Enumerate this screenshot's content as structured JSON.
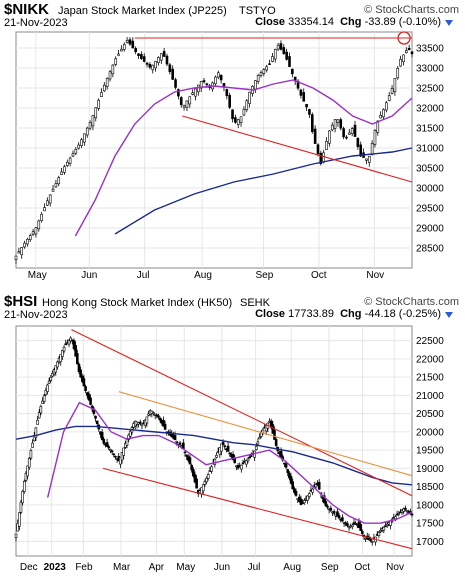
{
  "chart_data": [
    {
      "type": "candlestick",
      "symbol": "$NIKK",
      "title": "Japan Stock Market Index (JP225)",
      "exchange": "TSTYO",
      "brand": "© StockCharts.com",
      "date": "21-Nov-2023",
      "close_label": "Close",
      "close_value": "33354.14",
      "chg_label": "Chg",
      "chg_value": "-33.89 (-0.10%)",
      "x_ticks": [
        "May",
        "Jun",
        "Jul",
        "Aug",
        "Sep",
        "Oct",
        "Nov"
      ],
      "y_ticks": [
        28500,
        29000,
        29500,
        30000,
        30500,
        31000,
        31500,
        32000,
        32500,
        33000,
        33500
      ],
      "ylim": [
        28000,
        33900
      ],
      "price_path": [
        [
          0,
          28300
        ],
        [
          0.02,
          28600
        ],
        [
          0.05,
          29000
        ],
        [
          0.08,
          29700
        ],
        [
          0.12,
          30500
        ],
        [
          0.16,
          31100
        ],
        [
          0.19,
          31700
        ],
        [
          0.22,
          32500
        ],
        [
          0.25,
          33200
        ],
        [
          0.28,
          33700
        ],
        [
          0.31,
          33300
        ],
        [
          0.34,
          33000
        ],
        [
          0.37,
          33400
        ],
        [
          0.4,
          32600
        ],
        [
          0.42,
          32000
        ],
        [
          0.44,
          32300
        ],
        [
          0.47,
          32700
        ],
        [
          0.49,
          32500
        ],
        [
          0.51,
          32900
        ],
        [
          0.53,
          32400
        ],
        [
          0.55,
          31600
        ],
        [
          0.57,
          31800
        ],
        [
          0.59,
          32400
        ],
        [
          0.61,
          32800
        ],
        [
          0.64,
          33100
        ],
        [
          0.66,
          33600
        ],
        [
          0.68,
          33300
        ],
        [
          0.7,
          32800
        ],
        [
          0.72,
          32300
        ],
        [
          0.74,
          31900
        ],
        [
          0.75,
          31300
        ],
        [
          0.77,
          30600
        ],
        [
          0.79,
          31400
        ],
        [
          0.81,
          31800
        ],
        [
          0.83,
          31200
        ],
        [
          0.85,
          31500
        ],
        [
          0.87,
          30800
        ],
        [
          0.89,
          30700
        ],
        [
          0.91,
          31600
        ],
        [
          0.93,
          32000
        ],
        [
          0.95,
          32500
        ],
        [
          0.97,
          33200
        ],
        [
          0.99,
          33500
        ],
        [
          1,
          33354
        ]
      ],
      "ma50": [
        [
          0.15,
          28800
        ],
        [
          0.2,
          29700
        ],
        [
          0.25,
          30800
        ],
        [
          0.3,
          31600
        ],
        [
          0.35,
          32100
        ],
        [
          0.4,
          32400
        ],
        [
          0.45,
          32500
        ],
        [
          0.5,
          32550
        ],
        [
          0.55,
          32500
        ],
        [
          0.6,
          32450
        ],
        [
          0.65,
          32600
        ],
        [
          0.7,
          32700
        ],
        [
          0.75,
          32500
        ],
        [
          0.8,
          32200
        ],
        [
          0.85,
          31800
        ],
        [
          0.9,
          31600
        ],
        [
          0.95,
          31800
        ],
        [
          1,
          32250
        ]
      ],
      "ma200": [
        [
          0.25,
          28850
        ],
        [
          0.35,
          29450
        ],
        [
          0.45,
          29850
        ],
        [
          0.55,
          30150
        ],
        [
          0.65,
          30350
        ],
        [
          0.75,
          30600
        ],
        [
          0.85,
          30800
        ],
        [
          0.95,
          30900
        ],
        [
          1,
          31000
        ]
      ],
      "lines": [
        {
          "color": "#e02020",
          "pts": [
            [
              0.3,
              33750
            ],
            [
              1,
              33750
            ]
          ]
        },
        {
          "color": "#e02020",
          "pts": [
            [
              0.42,
              31800
            ],
            [
              1,
              30150
            ]
          ]
        }
      ],
      "highlight": [
        0.98,
        33750
      ],
      "colors": {
        "ma50": "#9b30c8",
        "ma200": "#1a2a8a",
        "up": "#ffffff",
        "down": "#000000"
      }
    },
    {
      "type": "candlestick",
      "symbol": "$HSI",
      "title": "Hong Kong Stock Market Index (HK50)",
      "exchange": "SEHK",
      "brand": "© StockCharts.com",
      "date": "21-Nov-2023",
      "close_label": "Close",
      "close_value": "17733.89",
      "chg_label": "Chg",
      "chg_value": "-44.18 (-0.25%)",
      "x_ticks": [
        "Dec",
        "2023",
        "Feb",
        "Mar",
        "Apr",
        "May",
        "Jun",
        "Jul",
        "Aug",
        "Sep",
        "Oct",
        "Nov"
      ],
      "y_ticks": [
        17000,
        17500,
        18000,
        18500,
        19000,
        19500,
        20000,
        20500,
        21000,
        21500,
        22000,
        22500
      ],
      "ylim": [
        16600,
        22900
      ],
      "price_path": [
        [
          0,
          17200
        ],
        [
          0.02,
          18600
        ],
        [
          0.04,
          19600
        ],
        [
          0.06,
          20600
        ],
        [
          0.08,
          21300
        ],
        [
          0.1,
          21800
        ],
        [
          0.12,
          22300
        ],
        [
          0.14,
          22600
        ],
        [
          0.16,
          21600
        ],
        [
          0.18,
          21000
        ],
        [
          0.2,
          20400
        ],
        [
          0.22,
          19700
        ],
        [
          0.24,
          19500
        ],
        [
          0.26,
          19200
        ],
        [
          0.28,
          19800
        ],
        [
          0.3,
          20300
        ],
        [
          0.32,
          20200
        ],
        [
          0.34,
          20600
        ],
        [
          0.36,
          20400
        ],
        [
          0.38,
          20000
        ],
        [
          0.4,
          19800
        ],
        [
          0.42,
          19600
        ],
        [
          0.44,
          19100
        ],
        [
          0.46,
          18300
        ],
        [
          0.48,
          18700
        ],
        [
          0.5,
          19200
        ],
        [
          0.52,
          19700
        ],
        [
          0.54,
          19400
        ],
        [
          0.56,
          19000
        ],
        [
          0.58,
          19200
        ],
        [
          0.6,
          19400
        ],
        [
          0.62,
          20000
        ],
        [
          0.64,
          20300
        ],
        [
          0.66,
          19500
        ],
        [
          0.68,
          19100
        ],
        [
          0.7,
          18400
        ],
        [
          0.72,
          18000
        ],
        [
          0.74,
          18300
        ],
        [
          0.76,
          18600
        ],
        [
          0.78,
          18000
        ],
        [
          0.8,
          17800
        ],
        [
          0.82,
          17600
        ],
        [
          0.84,
          17400
        ],
        [
          0.86,
          17500
        ],
        [
          0.88,
          17100
        ],
        [
          0.9,
          17000
        ],
        [
          0.92,
          17300
        ],
        [
          0.94,
          17500
        ],
        [
          0.96,
          17700
        ],
        [
          0.98,
          17900
        ],
        [
          1,
          17734
        ]
      ],
      "ma50": [
        [
          0.08,
          18200
        ],
        [
          0.12,
          20000
        ],
        [
          0.16,
          20800
        ],
        [
          0.2,
          20600
        ],
        [
          0.24,
          20000
        ],
        [
          0.28,
          19800
        ],
        [
          0.32,
          19900
        ],
        [
          0.36,
          19900
        ],
        [
          0.4,
          19700
        ],
        [
          0.44,
          19400
        ],
        [
          0.48,
          19100
        ],
        [
          0.52,
          19200
        ],
        [
          0.56,
          19300
        ],
        [
          0.6,
          19400
        ],
        [
          0.64,
          19500
        ],
        [
          0.68,
          19200
        ],
        [
          0.72,
          18800
        ],
        [
          0.76,
          18400
        ],
        [
          0.8,
          18000
        ],
        [
          0.84,
          17700
        ],
        [
          0.88,
          17500
        ],
        [
          0.92,
          17500
        ],
        [
          0.96,
          17600
        ],
        [
          1,
          17800
        ]
      ],
      "ma200": [
        [
          0,
          19800
        ],
        [
          0.05,
          19900
        ],
        [
          0.1,
          20050
        ],
        [
          0.15,
          20150
        ],
        [
          0.2,
          20150
        ],
        [
          0.25,
          20100
        ],
        [
          0.3,
          20050
        ],
        [
          0.35,
          20000
        ],
        [
          0.4,
          19950
        ],
        [
          0.45,
          19900
        ],
        [
          0.5,
          19800
        ],
        [
          0.55,
          19700
        ],
        [
          0.6,
          19650
        ],
        [
          0.65,
          19550
        ],
        [
          0.7,
          19450
        ],
        [
          0.75,
          19300
        ],
        [
          0.8,
          19150
        ],
        [
          0.85,
          18950
        ],
        [
          0.9,
          18750
        ],
        [
          0.95,
          18600
        ],
        [
          1,
          18550
        ]
      ],
      "lines": [
        {
          "color": "#e02020",
          "pts": [
            [
              0.14,
              22800
            ],
            [
              1,
              18250
            ]
          ]
        },
        {
          "color": "#e02020",
          "pts": [
            [
              0.22,
              19000
            ],
            [
              1,
              16800
            ]
          ]
        },
        {
          "color": "#e8903a",
          "pts": [
            [
              0.26,
              21100
            ],
            [
              1,
              18800
            ]
          ]
        }
      ],
      "colors": {
        "ma50": "#9b30c8",
        "ma200": "#1a2a8a",
        "up": "#ffffff",
        "down": "#000000"
      }
    }
  ]
}
